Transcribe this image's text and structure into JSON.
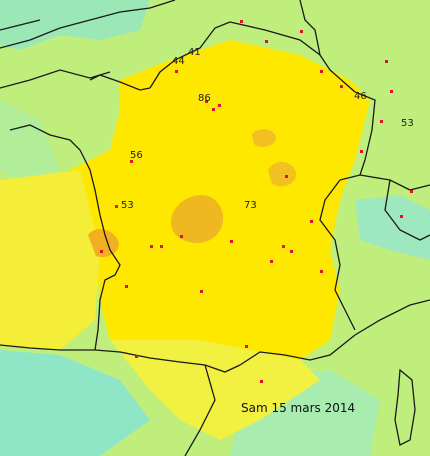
{
  "map": {
    "date_label": "Sam 15 mars 2014",
    "value_labels": [
      "41",
      "44",
      "86",
      "46",
      "53",
      "56",
      "53",
      "73"
    ],
    "colors": {
      "sea_low": "#8fe6c6",
      "low": "#c6f07a",
      "mid": "#f0f24a",
      "high": "#ffe800",
      "peak": "#f0b820",
      "border": "#1a1a1a",
      "stations": "#e0102a"
    }
  }
}
